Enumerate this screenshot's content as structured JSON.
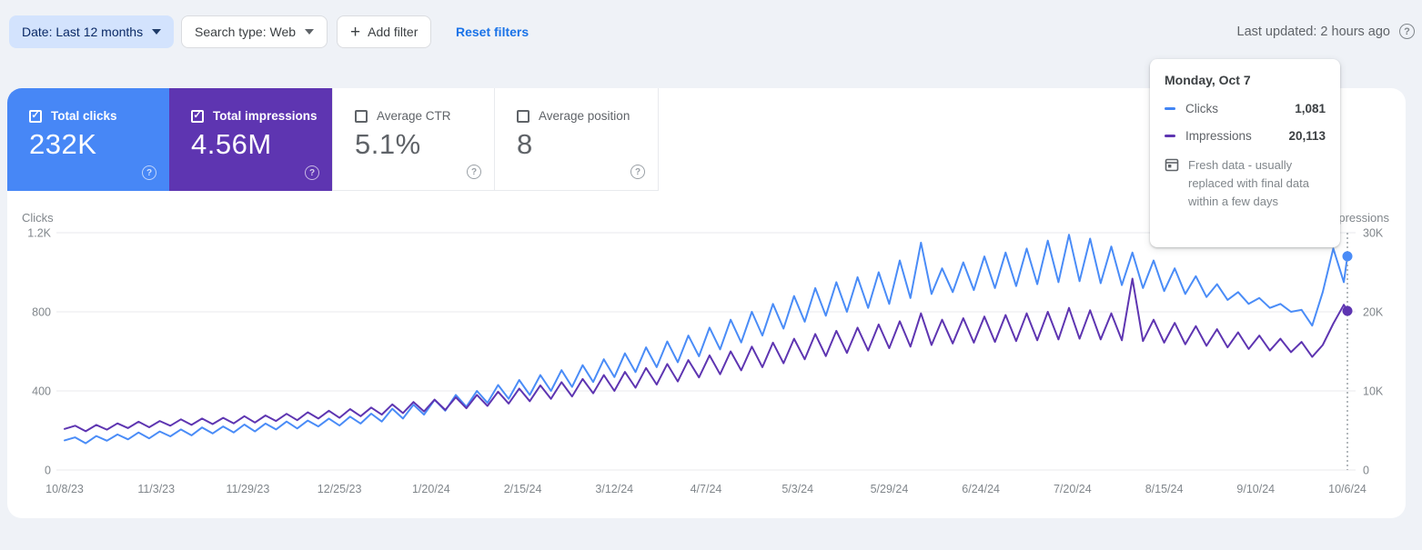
{
  "toolbar": {
    "date_filter_label": "Date: Last 12 months",
    "search_type_label": "Search type: Web",
    "add_filter_label": "Add filter",
    "reset_filters_label": "Reset filters",
    "last_updated": "Last updated: 2 hours ago",
    "help_glyph": "?"
  },
  "cards": {
    "clicks": {
      "label": "Total clicks",
      "value": "232K",
      "checked": true,
      "color": "#4787f6"
    },
    "impressions": {
      "label": "Total impressions",
      "value": "4.56M",
      "checked": true,
      "color": "#5e35b1"
    },
    "ctr": {
      "label": "Average CTR",
      "value": "5.1%",
      "checked": false
    },
    "position": {
      "label": "Average position",
      "value": "8",
      "checked": false
    }
  },
  "tooltip": {
    "title": "Monday, Oct 7",
    "rows": {
      "clicks": {
        "label": "Clicks",
        "value": "1,081",
        "color": "#4285f4"
      },
      "impressions": {
        "label": "Impressions",
        "value": "20,113",
        "color": "#5e35b1"
      }
    },
    "note": "Fresh data - usually replaced with final data within a few days"
  },
  "chart_data": {
    "type": "line",
    "sample_interval_days": 3,
    "total_days": 364,
    "y_left": {
      "title": "Clicks",
      "max": 1200,
      "ticks": [
        {
          "value": 0,
          "label": "0"
        },
        {
          "value": 400,
          "label": "400"
        },
        {
          "value": 800,
          "label": "800"
        },
        {
          "value": 1200,
          "label": "1.2K"
        }
      ]
    },
    "y_right": {
      "title": "Impressions",
      "max": 30000,
      "ticks": [
        {
          "value": 0,
          "label": "0"
        },
        {
          "value": 10000,
          "label": "10K"
        },
        {
          "value": 20000,
          "label": "20K"
        },
        {
          "value": 30000,
          "label": "30K"
        }
      ]
    },
    "x_ticks": [
      {
        "day": 0,
        "label": "10/8/23"
      },
      {
        "day": 26,
        "label": "11/3/23"
      },
      {
        "day": 52,
        "label": "11/29/23"
      },
      {
        "day": 78,
        "label": "12/25/23"
      },
      {
        "day": 104,
        "label": "1/20/24"
      },
      {
        "day": 130,
        "label": "2/15/24"
      },
      {
        "day": 156,
        "label": "3/12/24"
      },
      {
        "day": 182,
        "label": "4/7/24"
      },
      {
        "day": 208,
        "label": "5/3/24"
      },
      {
        "day": 234,
        "label": "5/29/24"
      },
      {
        "day": 260,
        "label": "6/24/24"
      },
      {
        "day": 286,
        "label": "7/20/24"
      },
      {
        "day": 312,
        "label": "8/15/24"
      },
      {
        "day": 338,
        "label": "9/10/24"
      },
      {
        "day": 364,
        "label": "10/6/24"
      }
    ],
    "series": [
      {
        "name": "Clicks",
        "axis": "left",
        "color": "#4a8cf7",
        "values": [
          150,
          165,
          135,
          172,
          148,
          180,
          155,
          190,
          160,
          195,
          170,
          205,
          175,
          215,
          185,
          220,
          190,
          230,
          195,
          235,
          205,
          245,
          210,
          250,
          220,
          260,
          225,
          270,
          235,
          285,
          245,
          310,
          260,
          330,
          280,
          355,
          300,
          380,
          320,
          400,
          340,
          430,
          360,
          455,
          380,
          480,
          400,
          505,
          420,
          530,
          445,
          560,
          470,
          590,
          495,
          620,
          520,
          650,
          545,
          680,
          575,
          720,
          610,
          760,
          645,
          800,
          680,
          840,
          715,
          880,
          750,
          920,
          780,
          950,
          800,
          975,
          820,
          1000,
          840,
          1060,
          870,
          1150,
          890,
          1020,
          900,
          1050,
          910,
          1080,
          920,
          1100,
          930,
          1120,
          940,
          1160,
          950,
          1190,
          955,
          1170,
          945,
          1130,
          935,
          1100,
          920,
          1060,
          905,
          1020,
          890,
          980,
          875,
          940,
          860,
          900,
          840,
          870,
          820,
          840,
          800,
          810,
          730,
          900,
          1120,
          950,
          1081
        ]
      },
      {
        "name": "Impressions",
        "axis": "right",
        "color": "#5e35b1",
        "values": [
          5200,
          5600,
          4900,
          5700,
          5100,
          5900,
          5300,
          6100,
          5400,
          6200,
          5600,
          6400,
          5700,
          6500,
          5800,
          6600,
          5900,
          6800,
          6000,
          6900,
          6200,
          7100,
          6300,
          7300,
          6500,
          7500,
          6600,
          7700,
          6800,
          7900,
          7000,
          8300,
          7200,
          8600,
          7400,
          8900,
          7600,
          9200,
          7800,
          9500,
          8100,
          9900,
          8400,
          10300,
          8700,
          10700,
          9000,
          11100,
          9300,
          11500,
          9700,
          12000,
          10000,
          12400,
          10400,
          12900,
          10800,
          13400,
          11200,
          13900,
          11700,
          14500,
          12100,
          15000,
          12600,
          15600,
          13000,
          16100,
          13500,
          16600,
          14000,
          17200,
          14400,
          17600,
          14800,
          18000,
          15100,
          18400,
          15400,
          18800,
          15600,
          19800,
          15800,
          19000,
          16000,
          19200,
          16100,
          19400,
          16200,
          19600,
          16300,
          19800,
          16400,
          20000,
          16500,
          20500,
          16600,
          20200,
          16500,
          19800,
          16400,
          24200,
          16300,
          19000,
          16100,
          18600,
          15900,
          18200,
          15700,
          17800,
          15500,
          17400,
          15300,
          17000,
          15100,
          16600,
          14900,
          16200,
          14300,
          15800,
          18500,
          20900,
          20113
        ]
      }
    ],
    "hover": {
      "day": 364,
      "clicks": 1081,
      "impressions": 20113,
      "line_color": "#9aa0a6"
    },
    "grid_color": "#e8eaed"
  }
}
